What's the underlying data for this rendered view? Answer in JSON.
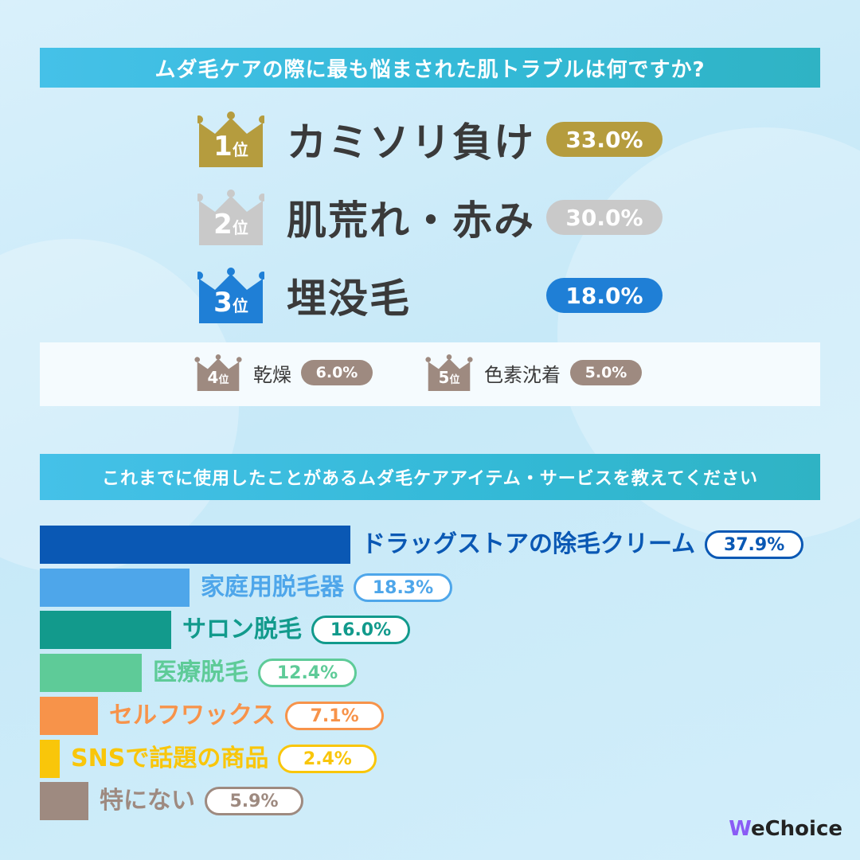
{
  "top_question": "ムダ毛ケアの際に最も悩まされた肌トラブルは何ですか?",
  "bottom_question": "これまでに使用したことがあるムダ毛ケアアイテム・サービスを教えてください",
  "logo": "WeChoice",
  "logo_initial": "W",
  "logo_rest": "eChoice",
  "rank_suffix": "位",
  "chart_data": [
    {
      "type": "bar",
      "title": "ムダ毛ケアの際に最も悩まされた肌トラブルは何ですか?",
      "categories": [
        "カミソリ負け",
        "肌荒れ・赤み",
        "埋没毛",
        "乾燥",
        "色素沈着"
      ],
      "ranks": [
        "1",
        "2",
        "3",
        "4",
        "5"
      ],
      "values": [
        33.0,
        30.0,
        18.0,
        6.0,
        5.0
      ],
      "value_labels": [
        "33.0%",
        "30.0%",
        "18.0%",
        "6.0%",
        "5.0%"
      ],
      "colors": [
        "#b59c3e",
        "#c9c9c9",
        "#1f7fd6",
        "#9e8a80",
        "#9e8a80"
      ]
    },
    {
      "type": "bar",
      "title": "これまでに使用したことがあるムダ毛ケアアイテム・サービスを教えてください",
      "categories": [
        "ドラッグストアの除毛クリーム",
        "家庭用脱毛器",
        "サロン脱毛",
        "医療脱毛",
        "セルフワックス",
        "SNSで話題の商品",
        "特にない"
      ],
      "values": [
        37.9,
        18.3,
        16.0,
        12.4,
        7.1,
        2.4,
        5.9
      ],
      "value_labels": [
        "37.9%",
        "18.3%",
        "16.0%",
        "12.4%",
        "7.1%",
        "2.4%",
        "5.9%"
      ],
      "colors": [
        "#0a58b4",
        "#4ea6ea",
        "#129a8c",
        "#5ecb98",
        "#f7934a",
        "#f9c60a",
        "#9e8a80"
      ],
      "xlim": [
        0,
        37.9
      ]
    }
  ]
}
